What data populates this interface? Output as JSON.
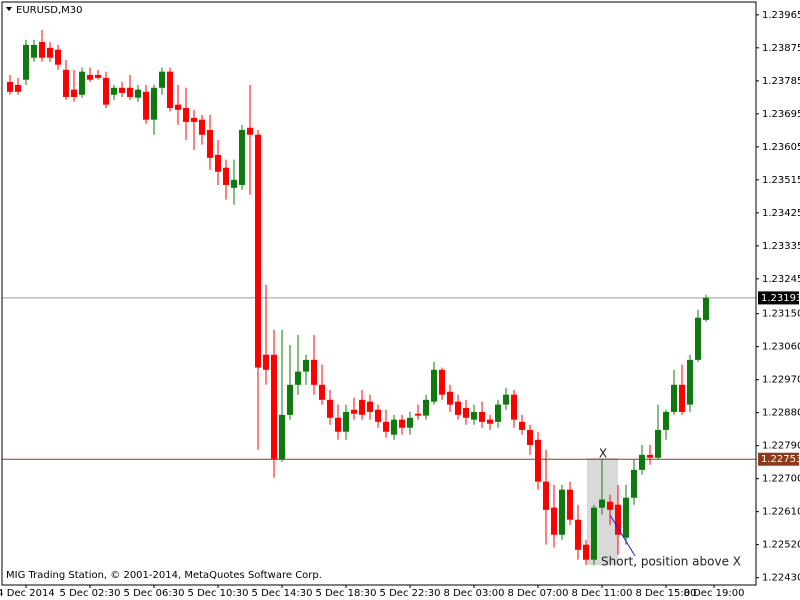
{
  "chart_data": {
    "type": "candlestick",
    "title": "EURUSD,M30",
    "footer": "MIG Trading Station, © 2001-2014, MetaQuotes Software Corp.",
    "annotations": [
      "X",
      "Short, position above X"
    ],
    "bull_color": "#0e7a0e",
    "bear_color": "#ff0000",
    "ylim": [
      1.2241,
      1.24
    ],
    "xlim": [
      -1,
      93.25
    ],
    "yticks": [
      {
        "value": 1.23965,
        "label": "1.23965"
      },
      {
        "value": 1.23875,
        "label": "1.23875"
      },
      {
        "value": 1.23785,
        "label": "1.23785"
      },
      {
        "value": 1.23695,
        "label": "1.23695"
      },
      {
        "value": 1.23605,
        "label": "1.23605"
      },
      {
        "value": 1.23515,
        "label": "1.23515"
      },
      {
        "value": 1.23425,
        "label": "1.23425"
      },
      {
        "value": 1.23335,
        "label": "1.23335"
      },
      {
        "value": 1.23245,
        "label": "1.23245"
      },
      {
        "value": 1.2315,
        "label": "1.23150"
      },
      {
        "value": 1.2306,
        "label": "1.23060"
      },
      {
        "value": 1.2297,
        "label": "1.22970"
      },
      {
        "value": 1.2288,
        "label": "1.22880"
      },
      {
        "value": 1.2279,
        "label": "1.22790"
      },
      {
        "value": 1.227,
        "label": "1.22700"
      },
      {
        "value": 1.2261,
        "label": "1.22610"
      },
      {
        "value": 1.2252,
        "label": "1.22520"
      },
      {
        "value": 1.2243,
        "label": "1.22430"
      }
    ],
    "xticks": [
      {
        "value": 2,
        "label": "4 Dec 2014"
      },
      {
        "value": 10,
        "label": "5 Dec 02:30"
      },
      {
        "value": 18,
        "label": "5 Dec 06:30"
      },
      {
        "value": 26,
        "label": "5 Dec 10:30"
      },
      {
        "value": 34,
        "label": "5 Dec 14:30"
      },
      {
        "value": 42,
        "label": "5 Dec 18:30"
      },
      {
        "value": 50,
        "label": "5 Dec 22:30"
      },
      {
        "value": 58,
        "label": "8 Dec 03:00"
      },
      {
        "value": 66,
        "label": "8 Dec 07:00"
      },
      {
        "value": 74,
        "label": "8 Dec 11:00"
      },
      {
        "value": 82,
        "label": "8 Dec 15:00"
      },
      {
        "value": 88,
        "label": "8 Dec 19:00"
      }
    ],
    "price_lines": [
      {
        "value": 1.23193,
        "color": "#9a9a9a",
        "label_bg": "#000000"
      },
      {
        "value": 1.22753,
        "color": "#8b3a1a",
        "label_bg": "#8b3a1a"
      }
    ],
    "open": [
      1.23782,
      1.23774,
      1.23788,
      1.23848,
      1.23891,
      1.23875,
      1.2387,
      1.23815,
      1.23761,
      1.23747,
      1.23801,
      1.23801,
      1.23793,
      1.23747,
      1.23766,
      1.23766,
      1.23739,
      1.23755,
      1.23679,
      1.23766,
      1.2381,
      1.2372,
      1.23711,
      1.23684,
      1.23679,
      1.23651,
      1.23583,
      1.23548,
      1.23493,
      1.23501,
      1.23657,
      1.23638,
      1.23038,
      1.23038,
      1.22752,
      1.22874,
      1.22956,
      1.22992,
      1.23024,
      1.22956,
      1.22915,
      1.22866,
      1.22828,
      1.22888,
      1.22915,
      1.2291,
      1.22888,
      1.22855,
      1.2282,
      1.22861,
      1.22839,
      1.22877,
      1.22872,
      1.2291,
      1.22997,
      1.22937,
      1.2291,
      1.22893,
      1.22861,
      1.22882,
      1.22861,
      1.22855,
      1.22902,
      1.22929,
      1.22855,
      1.22833,
      1.22806,
      1.22692,
      1.22621,
      1.22547,
      1.2267,
      1.22588,
      1.2252,
      1.22479,
      1.22621,
      1.22637,
      1.22629,
      1.22539,
      1.22648,
      1.22724,
      1.22765,
      1.22757,
      1.22833,
      1.22882,
      1.22956,
      1.22902,
      1.23024,
      1.23133
    ],
    "high": [
      1.23801,
      1.23793,
      1.23897,
      1.23897,
      1.23924,
      1.23891,
      1.23883,
      1.23842,
      1.23815,
      1.23821,
      1.23821,
      1.23815,
      1.2381,
      1.23774,
      1.23782,
      1.23801,
      1.23774,
      1.23774,
      1.23774,
      1.23821,
      1.23821,
      1.23774,
      1.23766,
      1.23706,
      1.23692,
      1.23692,
      1.23624,
      1.2357,
      1.2357,
      1.23665,
      1.23774,
      1.23651,
      1.23229,
      1.23106,
      1.23106,
      1.23065,
      1.23092,
      1.23038,
      1.23092,
      1.23011,
      1.22942,
      1.22902,
      1.22902,
      1.22921,
      1.22942,
      1.22929,
      1.22902,
      1.22888,
      1.22874,
      1.22874,
      1.22882,
      1.22902,
      1.22929,
      1.23019,
      1.23003,
      1.22956,
      1.22929,
      1.22915,
      1.22902,
      1.2291,
      1.22874,
      1.22915,
      1.22948,
      1.22942,
      1.22874,
      1.22847,
      1.22828,
      1.22779,
      1.22683,
      1.22683,
      1.22692,
      1.22629,
      1.22533,
      1.22629,
      1.22752,
      1.22656,
      1.22683,
      1.22683,
      1.22752,
      1.22792,
      1.22792,
      1.22902,
      1.22888,
      1.22997,
      1.23011,
      1.23038,
      1.23161,
      1.23202
    ],
    "low": [
      1.23747,
      1.23747,
      1.23774,
      1.23837,
      1.23837,
      1.23837,
      1.23815,
      1.23733,
      1.23728,
      1.23739,
      1.23782,
      1.23788,
      1.23711,
      1.23733,
      1.23741,
      1.23733,
      1.23728,
      1.23668,
      1.23638,
      1.23747,
      1.23701,
      1.23665,
      1.23624,
      1.23597,
      1.23611,
      1.23542,
      1.23501,
      1.23461,
      1.23447,
      1.23488,
      1.23474,
      1.22779,
      1.22956,
      1.22703,
      1.22746,
      1.22861,
      1.22929,
      1.22956,
      1.22929,
      1.22902,
      1.22847,
      1.22806,
      1.22806,
      1.22861,
      1.22861,
      1.22861,
      1.22839,
      1.22812,
      1.22806,
      1.2282,
      1.2282,
      1.22861,
      1.22861,
      1.22902,
      1.22915,
      1.22882,
      1.22861,
      1.22847,
      1.22847,
      1.22839,
      1.22833,
      1.22839,
      1.22888,
      1.22839,
      1.2282,
      1.22765,
      1.2267,
      1.2252,
      1.22512,
      1.22533,
      1.22574,
      1.22479,
      1.22465,
      1.22465,
      1.22602,
      1.22574,
      1.22493,
      1.2252,
      1.22629,
      1.22711,
      1.22738,
      1.22752,
      1.22806,
      1.22874,
      1.22874,
      1.22882,
      1.23019,
      1.23128
    ],
    "close": [
      1.23755,
      1.23755,
      1.23883,
      1.23883,
      1.23848,
      1.23848,
      1.23829,
      1.23741,
      1.23741,
      1.2381,
      1.23788,
      1.23793,
      1.2372,
      1.23766,
      1.23752,
      1.23741,
      1.23761,
      1.23679,
      1.23766,
      1.2381,
      1.23711,
      1.23706,
      1.23673,
      1.23673,
      1.23638,
      1.23575,
      1.23537,
      1.23501,
      1.23515,
      1.23651,
      1.23638,
      1.23003,
      1.22997,
      1.22752,
      1.22874,
      1.22956,
      1.22992,
      1.23024,
      1.22956,
      1.22915,
      1.22866,
      1.22828,
      1.22882,
      1.22877,
      1.22874,
      1.22882,
      1.22855,
      1.22828,
      1.22861,
      1.22839,
      1.22866,
      1.22872,
      1.22915,
      1.22997,
      1.22929,
      1.22902,
      1.22874,
      1.22866,
      1.22882,
      1.22855,
      1.2285,
      1.22902,
      1.22929,
      1.22861,
      1.22833,
      1.22792,
      1.22692,
      1.22615,
      1.22547,
      1.2267,
      1.22588,
      1.22506,
      1.22479,
      1.22621,
      1.22643,
      1.22615,
      1.22547,
      1.22648,
      1.22724,
      1.22765,
      1.22757,
      1.22833,
      1.22882,
      1.22956,
      1.22882,
      1.23024,
      1.23139,
      1.23193
    ]
  }
}
